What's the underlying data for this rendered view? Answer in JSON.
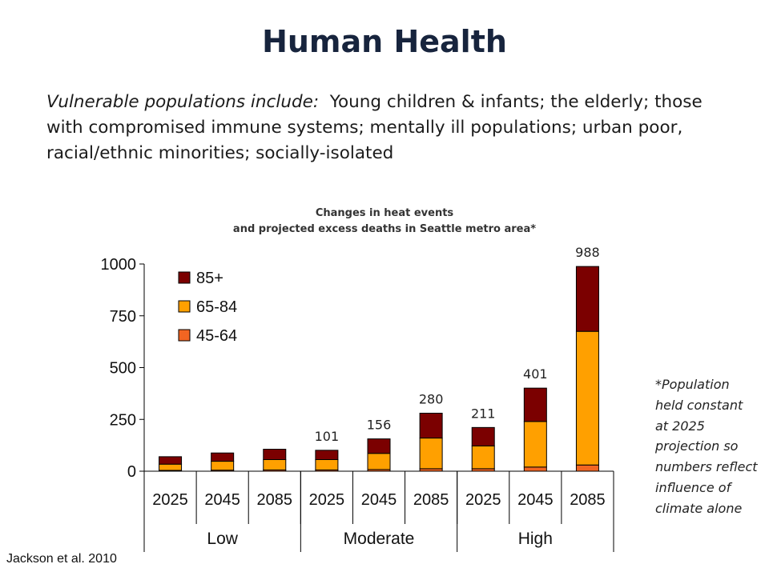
{
  "slide": {
    "title": "Human Health",
    "intro_lead": "Vulnerable populations include:",
    "intro_rest": "Young children & infants; the elderly; those with compromised immune systems; mentally ill populations; urban poor, racial/ethnic minorities; socially-isolated",
    "footnote": "*Population held constant at 2025 projection so numbers reflect influence of climate alone",
    "citation": "Jackson et al. 2010"
  },
  "chart_data": {
    "type": "bar",
    "stacked": true,
    "title": "Changes in heat events",
    "subtitle": "and projected excess deaths in Seattle metro area*",
    "categories": [
      "2025",
      "2045",
      "2085",
      "2025",
      "2045",
      "2085",
      "2025",
      "2045",
      "2085"
    ],
    "groups": [
      {
        "label": "Low",
        "span": 3
      },
      {
        "label": "Moderate",
        "span": 3
      },
      {
        "label": "High",
        "span": 3
      }
    ],
    "series": [
      {
        "name": "45-64",
        "color": "#f26522",
        "values": [
          4,
          5,
          6,
          6,
          8,
          12,
          12,
          20,
          30
        ]
      },
      {
        "name": "65-84",
        "color": "#ffa000",
        "values": [
          30,
          43,
          50,
          50,
          78,
          148,
          110,
          220,
          645
        ]
      },
      {
        "name": "85+",
        "color": "#7b0000",
        "values": [
          36,
          40,
          50,
          45,
          70,
          120,
          89,
          161,
          313
        ]
      }
    ],
    "totals": [
      "",
      "",
      "",
      "101",
      "156",
      "280",
      "211",
      "401",
      "988"
    ],
    "ylim": [
      0,
      1000
    ],
    "yticks": [
      0,
      250,
      500,
      750,
      1000
    ],
    "legend_position": "top-left",
    "grid": false
  }
}
